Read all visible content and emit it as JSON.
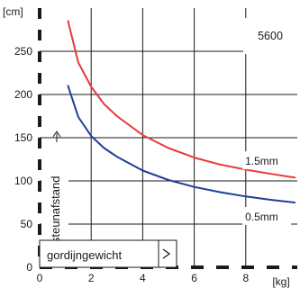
{
  "chart_data": {
    "type": "line",
    "title": "5600",
    "xlabel": "gordijngewicht",
    "ylabel": "steunafstand",
    "x_unit": "[kg]",
    "y_unit": "[cm]",
    "xlim": [
      0,
      10
    ],
    "ylim": [
      0,
      300
    ],
    "x_ticks": [
      0,
      2,
      4,
      6,
      8
    ],
    "y_ticks": [
      0,
      50,
      100,
      150,
      200,
      250
    ],
    "grid": true,
    "series": [
      {
        "name": "1.5mm",
        "color": "#e8383d",
        "x": [
          1.1,
          1.5,
          2,
          2.5,
          3,
          4,
          5,
          6,
          7,
          8,
          9,
          9.9
        ],
        "y": [
          285,
          237,
          209,
          189,
          175,
          153,
          138,
          127,
          119,
          113,
          108,
          104
        ]
      },
      {
        "name": "0.5mm",
        "color": "#1f3f9a",
        "x": [
          1.1,
          1.5,
          2,
          2.5,
          3,
          4,
          5,
          6,
          7,
          8,
          9,
          9.9
        ],
        "y": [
          210,
          174,
          152,
          138,
          128,
          112,
          101,
          93,
          87,
          82,
          78,
          75
        ]
      }
    ]
  }
}
